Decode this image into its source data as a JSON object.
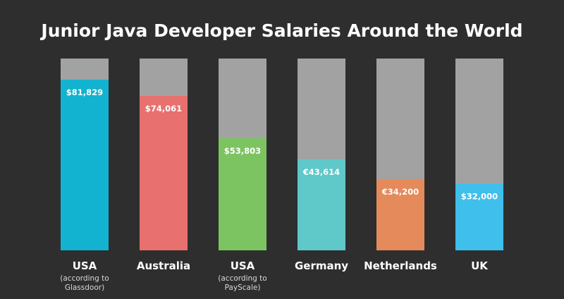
{
  "chart_data": {
    "type": "bar",
    "title": "Junior Java Developer Salaries Around the World",
    "categories": [
      {
        "label": "USA",
        "sub": [
          "(according to",
          "Glassdoor)"
        ]
      },
      {
        "label": "Australia",
        "sub": []
      },
      {
        "label": "USA",
        "sub": [
          "(according to",
          "PayScale)"
        ]
      },
      {
        "label": "Germany",
        "sub": []
      },
      {
        "label": "Netherlands",
        "sub": []
      },
      {
        "label": "UK",
        "sub": []
      }
    ],
    "values": [
      81829,
      74061,
      53803,
      43614,
      34200,
      32000
    ],
    "value_labels": [
      "$81,829",
      "$74,061",
      "$53,803",
      "€43,614",
      "€34,200",
      "$32,000"
    ],
    "ylim": [
      0,
      92000
    ],
    "colors": [
      "#12b3d0",
      "#e8706e",
      "#7cc462",
      "#5fc8c9",
      "#e58a5b",
      "#3fbfeb"
    ],
    "track_color": "#a2a2a2",
    "grid": false
  }
}
